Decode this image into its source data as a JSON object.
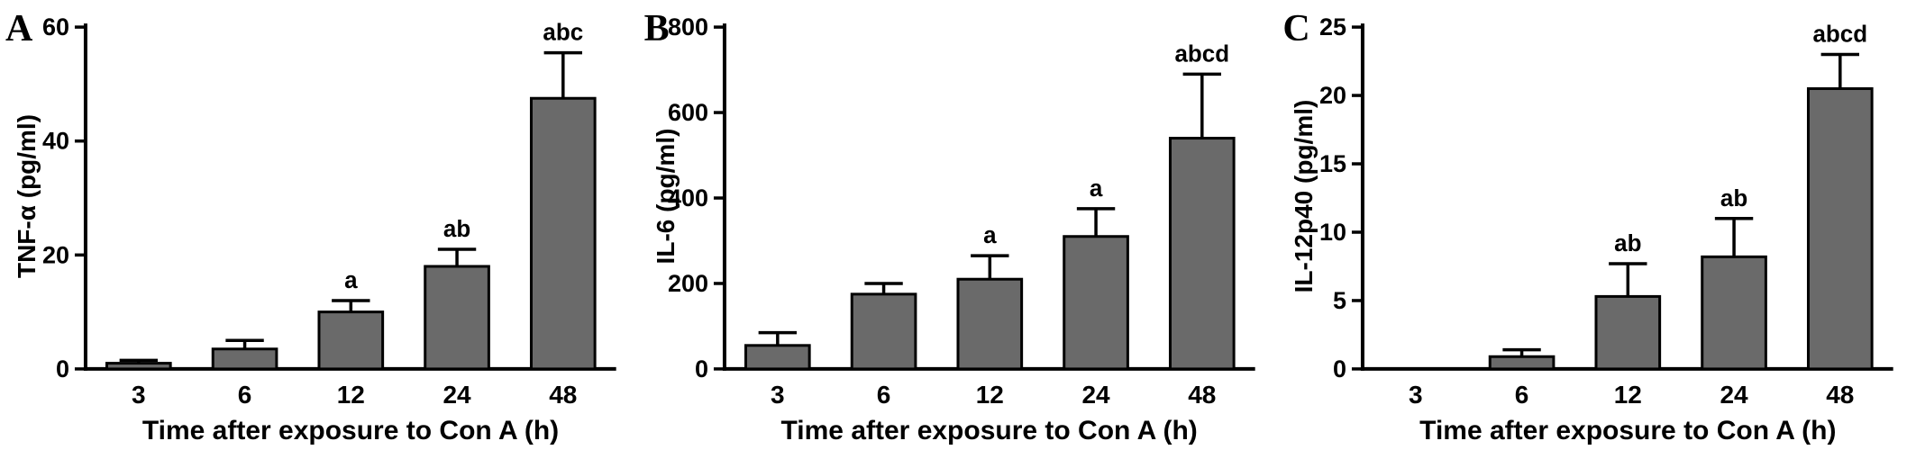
{
  "figure": {
    "background": "#ffffff",
    "bar_fill": "#6a6a6a",
    "bar_stroke": "#000000",
    "axis_color": "#000000"
  },
  "chart_data": [
    {
      "type": "bar",
      "panel_label": "A",
      "title": "",
      "ylabel": "TNF-α  (pg/ml)",
      "xlabel": "Time after exposure to Con A (h)",
      "categories": [
        "3",
        "6",
        "12",
        "24",
        "48"
      ],
      "values": [
        1,
        3.5,
        10,
        18,
        47.5
      ],
      "errors": [
        0.5,
        1.5,
        2,
        3,
        8
      ],
      "annotations": [
        "",
        "",
        "a",
        "ab",
        "abc"
      ],
      "ylim": [
        0,
        60
      ],
      "yticks": [
        0,
        20,
        40,
        60
      ],
      "grid": false,
      "legend": "none"
    },
    {
      "type": "bar",
      "panel_label": "B",
      "title": "",
      "ylabel": "IL-6 (pg/ml)",
      "xlabel": "Time after exposure to Con A (h)",
      "categories": [
        "3",
        "6",
        "12",
        "24",
        "48"
      ],
      "values": [
        55,
        175,
        210,
        310,
        540
      ],
      "errors": [
        30,
        25,
        55,
        65,
        150
      ],
      "annotations": [
        "",
        "",
        "a",
        "a",
        "abcd"
      ],
      "ylim": [
        0,
        800
      ],
      "yticks": [
        0,
        200,
        400,
        600,
        800
      ],
      "grid": false,
      "legend": "none"
    },
    {
      "type": "bar",
      "panel_label": "C",
      "title": "",
      "ylabel": "IL-12p40 (pg/ml)",
      "xlabel": "Time after exposure to Con A (h)",
      "categories": [
        "3",
        "6",
        "12",
        "24",
        "48"
      ],
      "values": [
        0,
        0.9,
        5.3,
        8.2,
        20.5
      ],
      "errors": [
        0,
        0.5,
        2.4,
        2.8,
        2.5
      ],
      "annotations": [
        "",
        "",
        "ab",
        "ab",
        "abcd"
      ],
      "ylim": [
        0,
        25
      ],
      "yticks": [
        0,
        5,
        10,
        15,
        20,
        25
      ],
      "grid": false,
      "legend": "none"
    }
  ]
}
